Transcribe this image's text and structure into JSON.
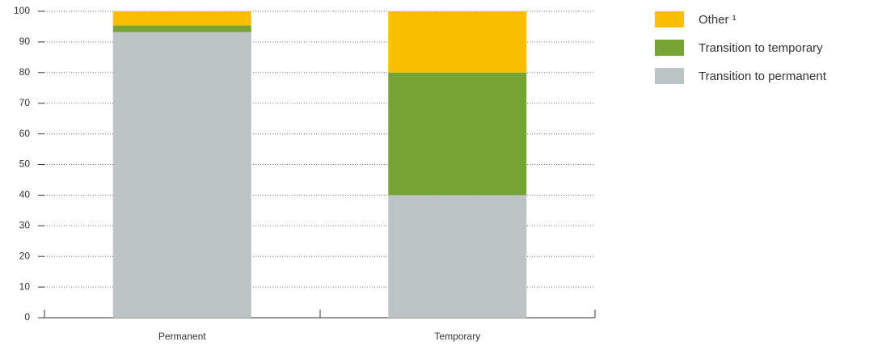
{
  "chart_data": {
    "type": "stacked_bar",
    "categories": [
      "Permanent",
      "Temporary"
    ],
    "series": [
      {
        "name": "Transition to permanent",
        "color": "#bdc4c6",
        "values": [
          93.2,
          40
        ]
      },
      {
        "name": "Transition to temporary",
        "color": "#78a436",
        "values": [
          2.2,
          40
        ]
      },
      {
        "name": "Other ¹",
        "color": "#fbbf00",
        "values": [
          4.6,
          20
        ]
      }
    ],
    "ylim": [
      0,
      100
    ],
    "yticks": [
      0,
      10,
      20,
      30,
      40,
      50,
      60,
      70,
      80,
      90,
      100
    ],
    "grid": true,
    "legend": "right"
  }
}
